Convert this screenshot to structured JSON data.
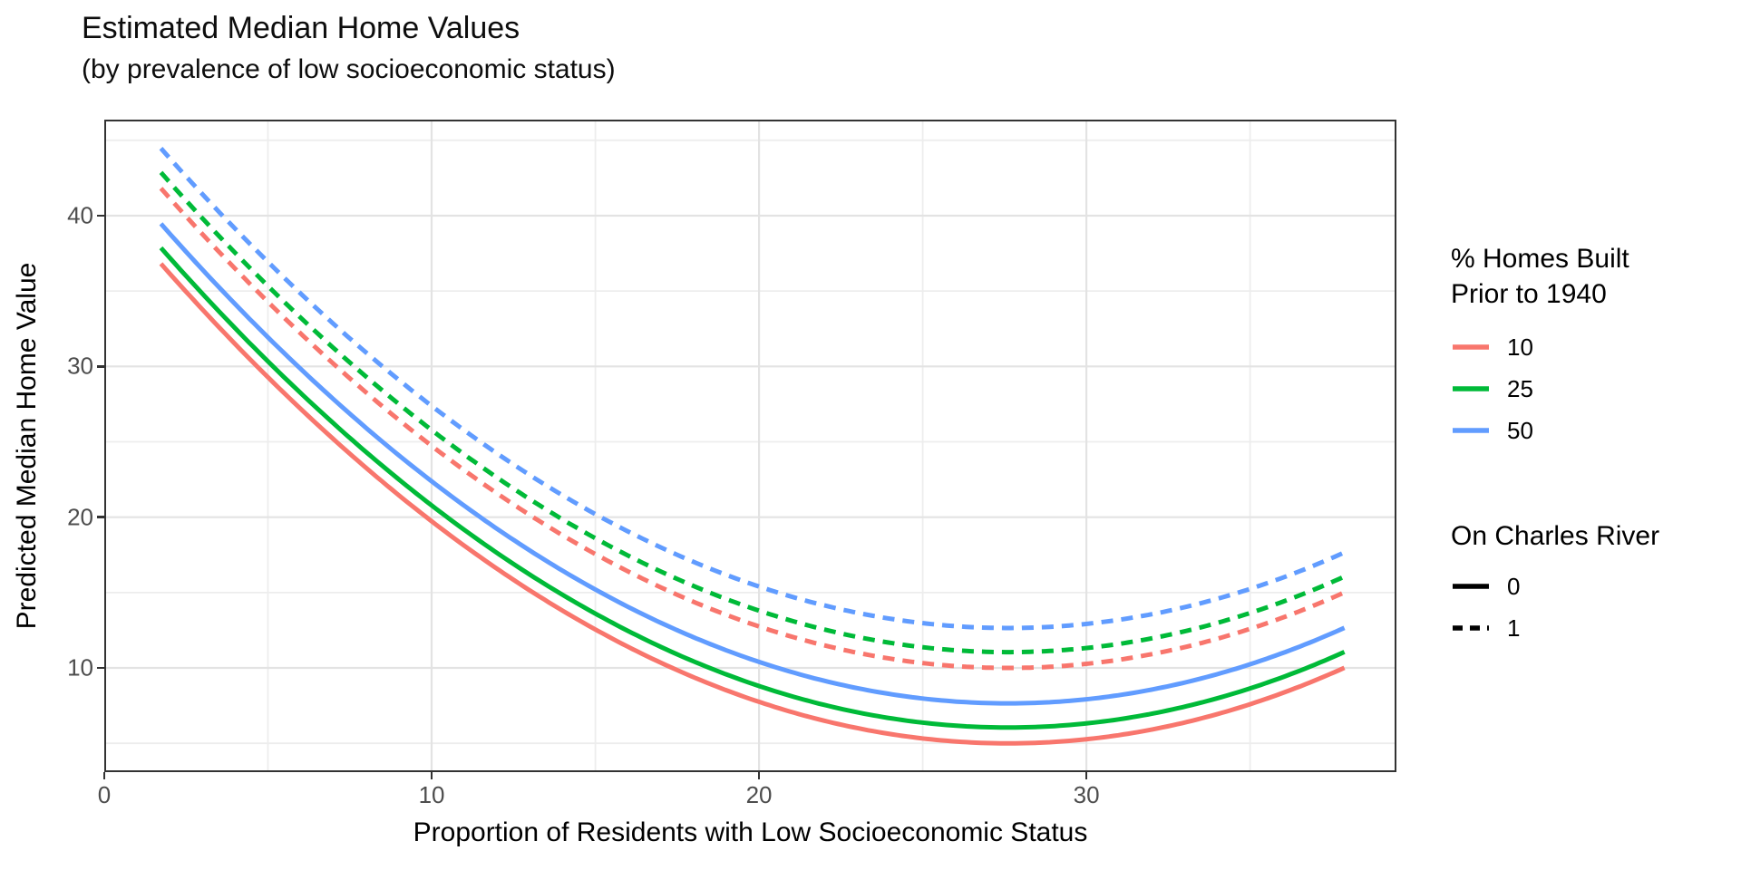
{
  "chart_data": {
    "type": "line",
    "title": "Estimated Median Home Values",
    "subtitle": "(by prevalence of low socioeconomic status)",
    "xlabel": "Proportion of Residents with Low Socioeconomic Status",
    "ylabel": "Predicted Median Home Value",
    "xlim": [
      0,
      39.47
    ],
    "ylim": [
      3.09,
      46.37
    ],
    "x_ticks": [
      0,
      10,
      20,
      30
    ],
    "y_ticks": [
      10,
      20,
      30,
      40
    ],
    "x_minor_ticks": [
      5,
      15,
      25,
      35
    ],
    "y_minor_ticks": [
      5,
      15,
      25,
      35,
      45
    ],
    "grid": "major+minor",
    "legend_position": "right",
    "x_domain": [
      1.73,
      37.97
    ],
    "base_curve": {
      "a": 5.0,
      "c": 0.0475,
      "x0": 27.61
    },
    "x_samples": [
      2,
      5,
      10,
      15,
      20,
      25,
      30,
      35,
      38
    ],
    "series": [
      {
        "name": "built10_river0",
        "pct_built": "10",
        "on_river": "0",
        "color": "#F8766D",
        "linetype": "solid",
        "offset": 0,
        "values": [
          36.2,
          29.3,
          19.7,
          12.6,
          7.8,
          5.3,
          5.3,
          7.6,
          10.1
        ]
      },
      {
        "name": "built25_river0",
        "pct_built": "25",
        "on_river": "0",
        "color": "#00BA38",
        "linetype": "solid",
        "offset": 1.05,
        "values": [
          37.2,
          30.3,
          20.8,
          13.6,
          8.8,
          6.4,
          6.3,
          8.6,
          11.2
        ]
      },
      {
        "name": "built50_river0",
        "pct_built": "50",
        "on_river": "0",
        "color": "#619CFF",
        "linetype": "solid",
        "offset": 2.65,
        "values": [
          38.8,
          31.9,
          22.4,
          15.2,
          10.4,
          8.0,
          7.9,
          10.2,
          12.8
        ]
      },
      {
        "name": "built10_river1",
        "pct_built": "10",
        "on_river": "1",
        "color": "#F8766D",
        "linetype": "dashed",
        "offset": 5.0,
        "values": [
          41.2,
          34.3,
          24.7,
          17.6,
          12.8,
          10.3,
          10.3,
          12.6,
          15.1
        ]
      },
      {
        "name": "built25_river1",
        "pct_built": "25",
        "on_river": "1",
        "color": "#00BA38",
        "linetype": "dashed",
        "offset": 6.05,
        "values": [
          42.2,
          35.3,
          25.8,
          18.6,
          13.8,
          11.4,
          11.3,
          13.6,
          16.2
        ]
      },
      {
        "name": "built50_river1",
        "pct_built": "50",
        "on_river": "1",
        "color": "#619CFF",
        "linetype": "dashed",
        "offset": 7.65,
        "values": [
          43.8,
          36.9,
          27.4,
          20.2,
          15.4,
          13.0,
          12.9,
          15.2,
          17.8
        ]
      }
    ]
  },
  "legends": {
    "color": {
      "title": "% Homes Built\nPrior to 1940",
      "entries": [
        {
          "label": "10",
          "color": "#F8766D"
        },
        {
          "label": "25",
          "color": "#00BA38"
        },
        {
          "label": "50",
          "color": "#619CFF"
        }
      ]
    },
    "linetype": {
      "title": "On Charles River",
      "entries": [
        {
          "label": "0",
          "linetype": "solid"
        },
        {
          "label": "1",
          "linetype": "dashed"
        }
      ]
    }
  },
  "theme": {
    "grid_major": "#E3E3E3",
    "grid_minor": "#EDEDED",
    "panel_border": "#333333",
    "tick_color": "#333333",
    "tick_label_color": "#4D4D4D",
    "curve_width": 5
  }
}
